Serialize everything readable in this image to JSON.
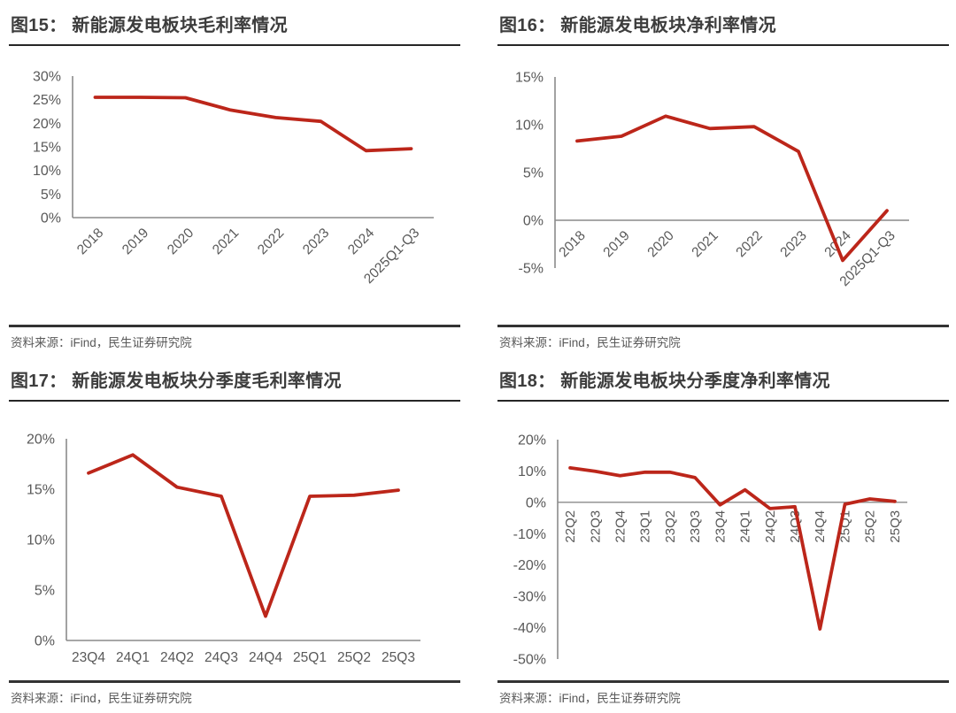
{
  "palette": {
    "line_red": "#bc261a",
    "axis_gray": "#8a8a8a",
    "tick_text_gray": "#595959",
    "title_gray": "#3d3d3d"
  },
  "chart_data": [
    {
      "id": "fig15",
      "type": "line",
      "title": "图15： 新能源发电板块毛利率情况",
      "source": "资料来源：iFind，民生证券研究院",
      "categories": [
        "2018",
        "2019",
        "2020",
        "2021",
        "2022",
        "2023",
        "2024",
        "2025Q1-Q3"
      ],
      "values": [
        25.5,
        25.5,
        25.4,
        22.8,
        21.2,
        20.4,
        14.2,
        14.6
      ],
      "ylim": [
        0,
        30
      ],
      "ytick_step": 5,
      "ytick_labels": [
        "30%",
        "25%",
        "20%",
        "15%",
        "10%",
        "5%",
        "0%"
      ],
      "x_label_rotation": -45,
      "legend": "none",
      "grid": false,
      "line_color": "#bc261a"
    },
    {
      "id": "fig16",
      "type": "line",
      "title": "图16： 新能源发电板块净利率情况",
      "source": "资料来源：iFind，民生证券研究院",
      "categories": [
        "2018",
        "2019",
        "2020",
        "2021",
        "2022",
        "2023",
        "2024",
        "2025Q1-Q3"
      ],
      "values": [
        8.3,
        8.8,
        10.9,
        9.6,
        9.8,
        7.2,
        -4.2,
        1.0
      ],
      "ylim": [
        -5,
        15
      ],
      "ytick_step": 5,
      "ytick_labels": [
        "15%",
        "10%",
        "5%",
        "0%",
        "-5%"
      ],
      "x_label_rotation": -45,
      "legend": "none",
      "grid": false,
      "line_color": "#bc261a"
    },
    {
      "id": "fig17",
      "type": "line",
      "title": "图17： 新能源发电板块分季度毛利率情况",
      "source": "资料来源：iFind，民生证券研究院",
      "categories": [
        "23Q4",
        "24Q1",
        "24Q2",
        "24Q3",
        "24Q4",
        "25Q1",
        "25Q2",
        "25Q3"
      ],
      "values": [
        16.6,
        18.4,
        15.2,
        14.3,
        2.4,
        14.3,
        14.4,
        14.9
      ],
      "ylim": [
        0,
        20
      ],
      "ytick_step": 5,
      "ytick_labels": [
        "20%",
        "15%",
        "10%",
        "5%",
        "0%"
      ],
      "x_label_rotation": 0,
      "legend": "none",
      "grid": false,
      "line_color": "#bc261a"
    },
    {
      "id": "fig18",
      "type": "line",
      "title": "图18： 新能源发电板块分季度净利率情况",
      "source": "资料来源：iFind，民生证券研究院",
      "categories": [
        "22Q2",
        "22Q3",
        "22Q4",
        "23Q1",
        "23Q2",
        "23Q3",
        "23Q4",
        "24Q1",
        "24Q2",
        "24Q3",
        "24Q4",
        "25Q1",
        "25Q2",
        "25Q3"
      ],
      "values": [
        11.0,
        9.9,
        8.5,
        9.6,
        9.6,
        7.9,
        -0.8,
        4.0,
        -2.0,
        -1.4,
        -40.4,
        -0.6,
        1.1,
        0.3
      ],
      "ylim": [
        -50,
        20
      ],
      "ytick_step": 10,
      "ytick_labels": [
        "20%",
        "10%",
        "0%",
        "-10%",
        "-20%",
        "-30%",
        "-40%",
        "-50%"
      ],
      "x_label_rotation": -90,
      "legend": "none",
      "grid": false,
      "line_color": "#bc261a"
    }
  ]
}
